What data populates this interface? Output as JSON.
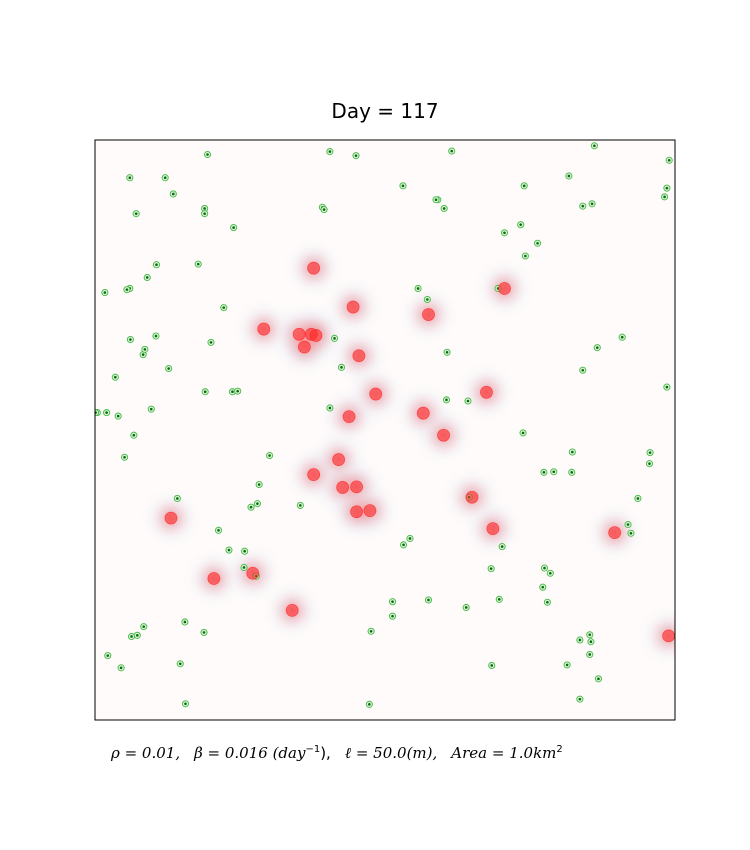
{
  "chart_data": {
    "type": "scatter",
    "title": "Day = 117",
    "xlabel": "",
    "ylabel": "",
    "axis_ticks": false,
    "grid": false,
    "xlim": [
      0,
      1000
    ],
    "ylim": [
      0,
      1000
    ],
    "colors": {
      "infected": "#ff2a2a",
      "susceptible_ring": "#44bb44",
      "susceptible_center": "#0a6a0a",
      "background": "#fffbfa",
      "density_halo": "#ff8080",
      "overlap_tint": "#b8c4e0"
    },
    "caption": {
      "rho": "ρ = 0.01,",
      "beta": "β = 0.016 (day",
      "beta_exp": "−1",
      "beta_close": "),",
      "ell": "ℓ = 50.0(m),",
      "area": "Area = 1.0km",
      "area_exp": "2"
    },
    "infected_points": [
      [
        377,
        779
      ],
      [
        445,
        712
      ],
      [
        291,
        674
      ],
      [
        352,
        665
      ],
      [
        381,
        663
      ],
      [
        373,
        665
      ],
      [
        361,
        643
      ],
      [
        455,
        628
      ],
      [
        575,
        699
      ],
      [
        706,
        744
      ],
      [
        484,
        562
      ],
      [
        438,
        523
      ],
      [
        566,
        529
      ],
      [
        601,
        491
      ],
      [
        675,
        565
      ],
      [
        377,
        423
      ],
      [
        420,
        449
      ],
      [
        427,
        401
      ],
      [
        451,
        402
      ],
      [
        474,
        361
      ],
      [
        451,
        359
      ],
      [
        650,
        384
      ],
      [
        686,
        330
      ],
      [
        131,
        348
      ],
      [
        205,
        244
      ],
      [
        272,
        253
      ],
      [
        340,
        189
      ],
      [
        896,
        323
      ],
      [
        989,
        145
      ]
    ],
    "susceptible_points": [
      [
        194,
        975
      ],
      [
        405,
        980
      ],
      [
        450,
        973
      ],
      [
        615,
        981
      ],
      [
        861,
        990
      ],
      [
        990,
        965
      ],
      [
        60,
        935
      ],
      [
        121,
        935
      ],
      [
        135,
        907
      ],
      [
        986,
        917
      ],
      [
        982,
        902
      ],
      [
        189,
        882
      ],
      [
        189,
        873
      ],
      [
        392,
        884
      ],
      [
        395,
        880
      ],
      [
        591,
        897
      ],
      [
        588,
        897
      ],
      [
        602,
        882
      ],
      [
        740,
        921
      ],
      [
        817,
        938
      ],
      [
        841,
        886
      ],
      [
        857,
        890
      ],
      [
        71,
        873
      ],
      [
        106,
        785
      ],
      [
        178,
        786
      ],
      [
        239,
        849
      ],
      [
        531,
        921
      ],
      [
        706,
        840
      ],
      [
        734,
        854
      ],
      [
        60,
        744
      ],
      [
        90,
        763
      ],
      [
        742,
        800
      ],
      [
        763,
        822
      ],
      [
        557,
        744
      ],
      [
        573,
        725
      ],
      [
        695,
        744
      ],
      [
        17,
        737
      ],
      [
        55,
        742
      ],
      [
        222,
        711
      ],
      [
        200,
        651
      ],
      [
        61,
        656
      ],
      [
        105,
        662
      ],
      [
        83,
        630
      ],
      [
        86,
        639
      ],
      [
        35,
        591
      ],
      [
        127,
        606
      ],
      [
        413,
        658
      ],
      [
        425,
        608
      ],
      [
        237,
        566
      ],
      [
        190,
        566
      ],
      [
        246,
        567
      ],
      [
        607,
        634
      ],
      [
        841,
        603
      ],
      [
        866,
        642
      ],
      [
        909,
        660
      ],
      [
        986,
        574
      ],
      [
        4,
        530
      ],
      [
        20,
        530
      ],
      [
        40,
        524
      ],
      [
        97,
        536
      ],
      [
        405,
        538
      ],
      [
        606,
        552
      ],
      [
        643,
        550
      ],
      [
        67,
        491
      ],
      [
        51,
        453
      ],
      [
        301,
        456
      ],
      [
        283,
        406
      ],
      [
        1,
        530
      ],
      [
        738,
        495
      ],
      [
        823,
        462
      ],
      [
        774,
        427
      ],
      [
        791,
        428
      ],
      [
        822,
        427
      ],
      [
        957,
        461
      ],
      [
        956,
        442
      ],
      [
        280,
        373
      ],
      [
        269,
        367
      ],
      [
        231,
        293
      ],
      [
        213,
        327
      ],
      [
        258,
        291
      ],
      [
        257,
        263
      ],
      [
        278,
        248
      ],
      [
        142,
        382
      ],
      [
        354,
        370
      ],
      [
        532,
        302
      ],
      [
        645,
        384
      ],
      [
        702,
        299
      ],
      [
        936,
        382
      ],
      [
        919,
        337
      ],
      [
        924,
        322
      ],
      [
        785,
        253
      ],
      [
        775,
        262
      ],
      [
        772,
        229
      ],
      [
        543,
        313
      ],
      [
        575,
        207
      ],
      [
        640,
        194
      ],
      [
        697,
        208
      ],
      [
        513,
        204
      ],
      [
        513,
        179
      ],
      [
        155,
        169
      ],
      [
        84,
        161
      ],
      [
        188,
        151
      ],
      [
        476,
        153
      ],
      [
        836,
        138
      ],
      [
        853,
        147
      ],
      [
        853,
        113
      ],
      [
        22,
        111
      ],
      [
        63,
        144
      ],
      [
        73,
        146
      ],
      [
        45,
        90
      ],
      [
        147,
        97
      ],
      [
        684,
        94
      ],
      [
        814,
        95
      ],
      [
        683,
        261
      ],
      [
        780,
        203
      ],
      [
        868,
        71
      ],
      [
        156,
        28
      ],
      [
        473,
        27
      ],
      [
        855,
        135
      ],
      [
        836,
        36
      ]
    ]
  }
}
